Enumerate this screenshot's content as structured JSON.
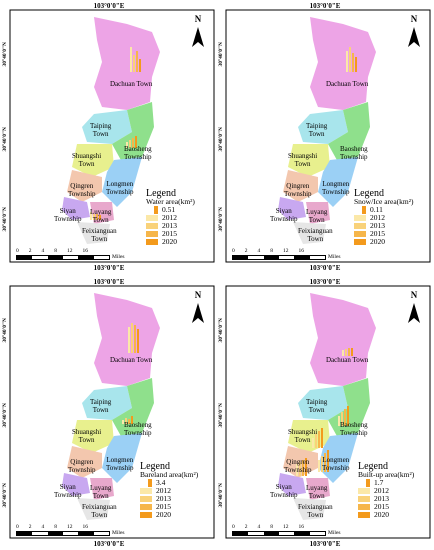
{
  "coord_label": "103°0'0\"E",
  "lat_label": "30°40'0\"N",
  "north": "N",
  "scale": {
    "ticks": [
      "0",
      "2",
      "4",
      "8",
      "12",
      "16"
    ],
    "unit": "Miles"
  },
  "towns": {
    "dachuan": "Dachuan Town",
    "taiping": "Taiping\nTown",
    "shuangshi": "Shuangshi\nTown",
    "baosheng": "Baosheng\nTownship",
    "qingren": "Qingren\nTownship",
    "longmen": "Longmen\nTownship",
    "siyan": "Siyan\nTownship",
    "luyang": "Luyang\nTown",
    "feixianguan": "Feixianguan\nTown"
  },
  "years": [
    "2012",
    "2013",
    "2015",
    "2020"
  ],
  "year_colors": [
    "#fbe8a8",
    "#f9d27a",
    "#f6b64a",
    "#f39a1c"
  ],
  "region_colors": {
    "dachuan": "#eda4e6",
    "taiping": "#a8e5ec",
    "shuangshi": "#e8f08e",
    "baosheng": "#8fe08c",
    "longmen": "#9bd0f5",
    "qingren": "#f3c7ae",
    "siyan": "#c8a8f0",
    "luyang": "#e8a8cc",
    "feixianguan": "#e6e6e6"
  },
  "panels": [
    {
      "legend_title": "Legend",
      "legend_sub": "Water area(km²)",
      "legend_max": "0.51"
    },
    {
      "legend_title": "Legend",
      "legend_sub": "Snow/Ice area(km²)",
      "legend_max": "0.11"
    },
    {
      "legend_title": "Legend",
      "legend_sub": "Bareland area(km²)",
      "legend_max": "3.4"
    },
    {
      "legend_title": "Legend",
      "legend_sub": "Built-up area(km²)",
      "legend_max": "1.7"
    }
  ]
}
